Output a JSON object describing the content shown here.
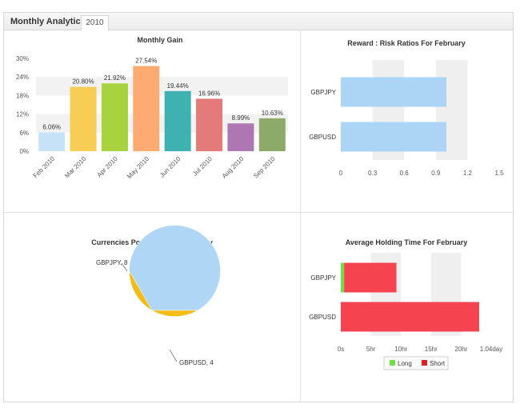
{
  "tabs": {
    "title": "Monthly Analytics",
    "year_tab": "2010"
  },
  "chart_data": [
    {
      "type": "bar",
      "title": "Monthly Gain",
      "categories": [
        "Feb 2010",
        "Mar 2010",
        "Apr 2010",
        "May 2010",
        "Jun 2010",
        "Jul 2010",
        "Aug 2010",
        "Sep 2010"
      ],
      "values": [
        6.06,
        20.8,
        21.92,
        27.54,
        19.44,
        16.96,
        8.99,
        10.63
      ],
      "data_labels": [
        "6.06%",
        "20.80%",
        "21.92%",
        "27.54%",
        "19.44%",
        "16.96%",
        "8.99%",
        "10.63%"
      ],
      "bar_colors": [
        "#c6e2f7",
        "#f7cd55",
        "#a9d23f",
        "#fdab72",
        "#3fb1b1",
        "#e57a7a",
        "#ad78b2",
        "#8daa6a"
      ],
      "y_ticks": [
        "0%",
        "6%",
        "12%",
        "18%",
        "24%",
        "30%"
      ],
      "ylim": [
        0,
        30
      ],
      "grid": "alternate bands"
    },
    {
      "type": "bar",
      "orientation": "horizontal",
      "title": "Reward : Risk Ratios For February",
      "categories": [
        "GBPJPY",
        "GBPUSD"
      ],
      "values": [
        1.0,
        1.0
      ],
      "bar_color": "#abd4f5",
      "x_ticks": [
        "0",
        "0.3",
        "0.6",
        "0.9",
        "1.2",
        "1.5"
      ],
      "xlim": [
        0,
        1.5
      ]
    },
    {
      "type": "pie",
      "title": "Currencies Popularity For February",
      "labels": [
        "GBPJPY",
        "GBPUSD"
      ],
      "values": [
        8,
        4
      ],
      "slice_labels": [
        "GBPJPY, 8",
        "GBPUSD, 4"
      ],
      "colors": [
        "#b0d6f6",
        "#f2bc14"
      ]
    },
    {
      "type": "bar",
      "orientation": "horizontal",
      "stacked": true,
      "title": "Average Holding Time For February",
      "categories": [
        "GBPJPY",
        "GBPUSD"
      ],
      "series": [
        {
          "name": "Long",
          "values": [
            2.2,
            0
          ],
          "color": "#6ee046"
        },
        {
          "name": "Short",
          "values": [
            34.8,
            92
          ],
          "color": "#f5444f"
        }
      ],
      "x_ticks": [
        "0s",
        "5hr",
        "10hr",
        "15hr",
        "20hr",
        "1.04day"
      ],
      "xlim": [
        0,
        100
      ],
      "legend": "bottom"
    }
  ]
}
